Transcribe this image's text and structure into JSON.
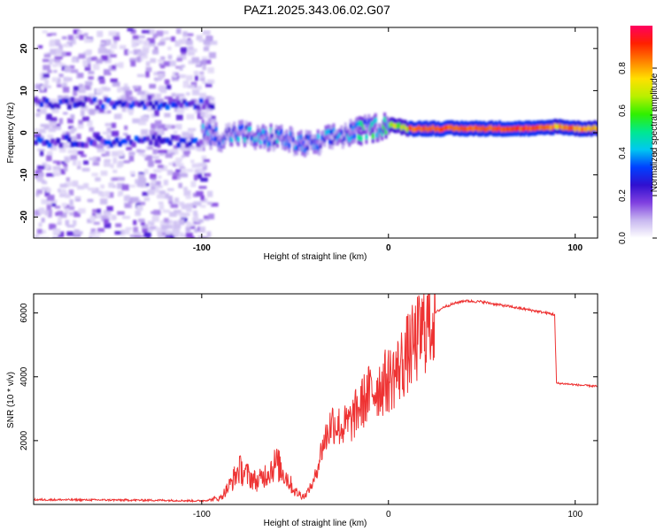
{
  "title": "PAZ1.2025.343.06.02.G07",
  "chart_data": [
    {
      "type": "heatmap",
      "xlabel": "Height of straight line (km)",
      "ylabel": "Frequency (Hz)",
      "xlim": [
        -190,
        112
      ],
      "ylim": [
        -25,
        25
      ],
      "xticks": [
        -100,
        0,
        100
      ],
      "yticks": [
        -20,
        -10,
        0,
        10,
        20
      ],
      "colorbar": {
        "label": "Normalized spectral amplitude",
        "range": [
          0,
          1
        ],
        "ticks": [
          0.0,
          0.2,
          0.4,
          0.6,
          0.8
        ],
        "colors": [
          "#ffffff",
          "#c8b8f0",
          "#8040e0",
          "#3010d0",
          "#0040ff",
          "#00c8f0",
          "#00e890",
          "#30f000",
          "#b8f000",
          "#ffe000",
          "#ff8000",
          "#ff2000",
          "#ff0060"
        ]
      },
      "ridge": {
        "description_x": [
          -100,
          -90,
          -80,
          -70,
          -60,
          -50,
          -40,
          -30,
          -20,
          -10,
          0,
          10,
          20,
          40,
          60,
          80,
          90,
          100,
          112
        ],
        "frequency_hz": [
          0,
          -1,
          0,
          -1.5,
          -1,
          -2.5,
          -3,
          -1,
          0,
          1,
          2,
          1,
          1,
          1,
          1,
          1,
          1.5,
          1,
          1
        ]
      },
      "side_bands": [
        {
          "x_range": [
            -190,
            -95
          ],
          "frequency_hz": 7
        },
        {
          "x_range": [
            -190,
            -100
          ],
          "frequency_hz": -2
        }
      ]
    },
    {
      "type": "line",
      "xlabel": "Height of straight line (km)",
      "ylabel": "SNR (10 * v/v)",
      "xlim": [
        -190,
        112
      ],
      "ylim": [
        0,
        6600
      ],
      "xticks": [
        -100,
        0,
        100
      ],
      "yticks": [
        2000,
        4000,
        6000
      ],
      "color": "#ee3333",
      "series": [
        {
          "name": "SNR",
          "x": [
            -190,
            -150,
            -120,
            -100,
            -90,
            -85,
            -80,
            -75,
            -70,
            -65,
            -60,
            -55,
            -50,
            -45,
            -40,
            -35,
            -30,
            -25,
            -20,
            -15,
            -10,
            -5,
            0,
            5,
            10,
            15,
            20,
            25,
            30,
            40,
            50,
            60,
            70,
            80,
            89,
            90,
            95,
            100,
            112
          ],
          "y": [
            150,
            140,
            130,
            110,
            200,
            600,
            1100,
            900,
            700,
            1000,
            1300,
            900,
            400,
            250,
            700,
            1900,
            2600,
            2400,
            2600,
            3100,
            3500,
            3700,
            3900,
            4200,
            4700,
            5100,
            5600,
            6000,
            6200,
            6380,
            6350,
            6250,
            6150,
            6050,
            5950,
            3800,
            3780,
            3750,
            3700
          ]
        }
      ]
    }
  ]
}
